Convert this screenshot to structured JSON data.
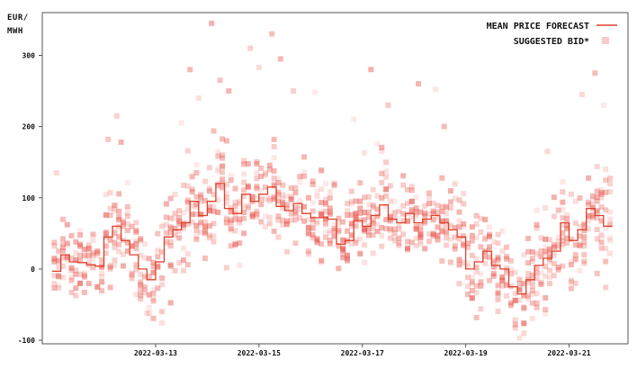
{
  "chart_data": {
    "type": "scatter",
    "unit_label_line1": "EUR/",
    "unit_label_line2": "MWH",
    "x_range": [
      "2022-03-11",
      "2022-03-22"
    ],
    "ylim": [
      -105,
      360
    ],
    "y_ticks": [
      -100,
      0,
      100,
      200,
      300
    ],
    "x_ticks": [
      "2022-03-13",
      "2022-03-15",
      "2022-03-17",
      "2022-03-19",
      "2022-03-21"
    ],
    "grid": false,
    "legend_position": "top-right",
    "colors": {
      "forecast": "#e0412a",
      "bid": "#e8534a",
      "axis": "#555555"
    },
    "series": [
      {
        "name": "MEAN PRICE FORECAST",
        "kind": "step-line",
        "points": [
          [
            "2022-03-11 00:00",
            -3
          ],
          [
            "2022-03-11 04:00",
            20
          ],
          [
            "2022-03-11 08:00",
            10
          ],
          [
            "2022-03-11 12:00",
            9
          ],
          [
            "2022-03-11 16:00",
            6
          ],
          [
            "2022-03-11 20:00",
            4
          ],
          [
            "2022-03-12 00:00",
            45
          ],
          [
            "2022-03-12 04:00",
            60
          ],
          [
            "2022-03-12 08:00",
            40
          ],
          [
            "2022-03-12 12:00",
            20
          ],
          [
            "2022-03-12 16:00",
            0
          ],
          [
            "2022-03-12 20:00",
            -15
          ],
          [
            "2022-03-13 00:00",
            10
          ],
          [
            "2022-03-13 04:00",
            45
          ],
          [
            "2022-03-13 08:00",
            55
          ],
          [
            "2022-03-13 12:00",
            65
          ],
          [
            "2022-03-13 16:00",
            95
          ],
          [
            "2022-03-13 20:00",
            75
          ],
          [
            "2022-03-14 00:00",
            95
          ],
          [
            "2022-03-14 04:00",
            120
          ],
          [
            "2022-03-14 08:00",
            85
          ],
          [
            "2022-03-14 12:00",
            78
          ],
          [
            "2022-03-14 16:00",
            105
          ],
          [
            "2022-03-14 20:00",
            95
          ],
          [
            "2022-03-15 00:00",
            105
          ],
          [
            "2022-03-15 04:00",
            115
          ],
          [
            "2022-03-15 08:00",
            88
          ],
          [
            "2022-03-15 12:00",
            82
          ],
          [
            "2022-03-15 16:00",
            92
          ],
          [
            "2022-03-15 20:00",
            78
          ],
          [
            "2022-03-16 00:00",
            72
          ],
          [
            "2022-03-16 04:00",
            72
          ],
          [
            "2022-03-16 08:00",
            70
          ],
          [
            "2022-03-16 12:00",
            35
          ],
          [
            "2022-03-16 16:00",
            40
          ],
          [
            "2022-03-16 20:00",
            68
          ],
          [
            "2022-03-17 00:00",
            60
          ],
          [
            "2022-03-17 04:00",
            75
          ],
          [
            "2022-03-17 08:00",
            90
          ],
          [
            "2022-03-17 12:00",
            70
          ],
          [
            "2022-03-17 16:00",
            65
          ],
          [
            "2022-03-17 20:00",
            78
          ],
          [
            "2022-03-18 00:00",
            65
          ],
          [
            "2022-03-18 04:00",
            70
          ],
          [
            "2022-03-18 08:00",
            75
          ],
          [
            "2022-03-18 12:00",
            65
          ],
          [
            "2022-03-18 16:00",
            55
          ],
          [
            "2022-03-18 20:00",
            45
          ],
          [
            "2022-03-19 00:00",
            0
          ],
          [
            "2022-03-19 04:00",
            10
          ],
          [
            "2022-03-19 08:00",
            25
          ],
          [
            "2022-03-19 12:00",
            5
          ],
          [
            "2022-03-19 16:00",
            0
          ],
          [
            "2022-03-19 20:00",
            -25
          ],
          [
            "2022-03-20 00:00",
            -35
          ],
          [
            "2022-03-20 04:00",
            -15
          ],
          [
            "2022-03-20 08:00",
            5
          ],
          [
            "2022-03-20 12:00",
            15
          ],
          [
            "2022-03-20 16:00",
            25
          ],
          [
            "2022-03-20 20:00",
            65
          ],
          [
            "2022-03-21 00:00",
            40
          ],
          [
            "2022-03-21 04:00",
            55
          ],
          [
            "2022-03-21 08:00",
            85
          ],
          [
            "2022-03-21 12:00",
            75
          ],
          [
            "2022-03-21 16:00",
            60
          ]
        ]
      },
      {
        "name": "SUGGESTED BID*",
        "kind": "scatter-squares",
        "note": "dense vertical columns of semi-transparent squares around each forecast step, plus scattered outliers",
        "outliers": [
          [
            "2022-03-11 02:00",
            135
          ],
          [
            "2022-03-12 06:00",
            215
          ],
          [
            "2022-03-12 02:00",
            182
          ],
          [
            "2022-03-12 08:00",
            178
          ],
          [
            "2022-03-12 20:00",
            -62
          ],
          [
            "2022-03-13 12:00",
            205
          ],
          [
            "2022-03-13 16:00",
            280
          ],
          [
            "2022-03-13 20:00",
            240
          ],
          [
            "2022-03-14 02:00",
            345
          ],
          [
            "2022-03-14 06:00",
            265
          ],
          [
            "2022-03-14 10:00",
            250
          ],
          [
            "2022-03-14 20:00",
            310
          ],
          [
            "2022-03-15 00:00",
            283
          ],
          [
            "2022-03-15 06:00",
            330
          ],
          [
            "2022-03-15 10:00",
            295
          ],
          [
            "2022-03-15 16:00",
            250
          ],
          [
            "2022-03-16 02:00",
            248
          ],
          [
            "2022-03-16 20:00",
            210
          ],
          [
            "2022-03-17 04:00",
            280
          ],
          [
            "2022-03-17 12:00",
            230
          ],
          [
            "2022-03-18 02:00",
            260
          ],
          [
            "2022-03-18 10:00",
            252
          ],
          [
            "2022-03-18 14:00",
            200
          ],
          [
            "2022-03-20 14:00",
            165
          ],
          [
            "2022-03-21 06:00",
            245
          ],
          [
            "2022-03-21 12:00",
            275
          ],
          [
            "2022-03-21 16:00",
            230
          ]
        ]
      }
    ]
  }
}
